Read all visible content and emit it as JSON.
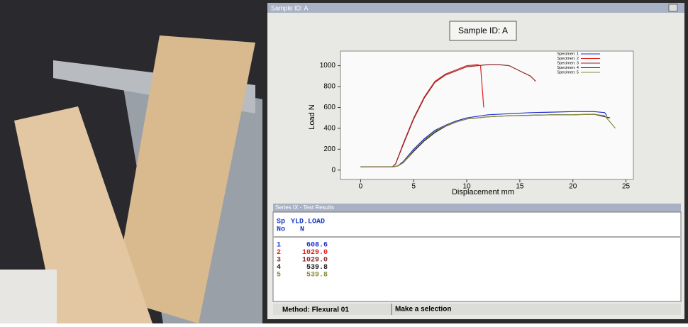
{
  "window": {
    "title": "Sample ID: A"
  },
  "chart_data": {
    "type": "line",
    "title": "Sample ID: A",
    "x_label": "Displacement mm",
    "y_label": "Load N",
    "xlim": [
      -1.9,
      25.7
    ],
    "ylim": [
      -90,
      1140
    ],
    "xticks": [
      0,
      5,
      10,
      15,
      20,
      25
    ],
    "yticks": [
      0,
      200,
      400,
      600,
      800,
      1000
    ],
    "series": [
      {
        "name": "Specimen: 1",
        "color": "#2030d0",
        "x": [
          0,
          1,
          2,
          3,
          3.5,
          4,
          5,
          6,
          7,
          8,
          9,
          10,
          12,
          14,
          16,
          18,
          20,
          22,
          23,
          23.2
        ],
        "values": [
          30,
          30,
          30,
          30,
          40,
          80,
          200,
          300,
          380,
          430,
          470,
          500,
          530,
          540,
          550,
          555,
          560,
          560,
          550,
          520
        ]
      },
      {
        "name": "Specimen: 2",
        "color": "#e02020",
        "x": [
          0,
          1,
          2,
          3,
          3.3,
          4,
          5,
          6,
          7,
          8,
          9,
          10,
          11,
          11.3,
          11.6
        ],
        "values": [
          30,
          30,
          30,
          30,
          60,
          250,
          500,
          700,
          850,
          920,
          960,
          1000,
          1010,
          1000,
          600
        ]
      },
      {
        "name": "Specimen: 3",
        "color": "#8b2a2a",
        "x": [
          0,
          1,
          2,
          3,
          3.3,
          4,
          5,
          6,
          7,
          8,
          9,
          10,
          11,
          12,
          13,
          14,
          15,
          16,
          16.5
        ],
        "values": [
          30,
          30,
          30,
          30,
          60,
          240,
          490,
          690,
          840,
          910,
          950,
          990,
          1000,
          1010,
          1010,
          1000,
          950,
          900,
          850
        ]
      },
      {
        "name": "Specimen: 4",
        "color": "#202020",
        "x": [
          0,
          1,
          2,
          3,
          3.5,
          4,
          5,
          6,
          7,
          8,
          9,
          10,
          12,
          14,
          16,
          18,
          20,
          22,
          23.5
        ],
        "values": [
          30,
          30,
          30,
          30,
          40,
          70,
          180,
          280,
          360,
          420,
          460,
          490,
          510,
          520,
          525,
          530,
          530,
          535,
          500
        ]
      },
      {
        "name": "Specimen: 5",
        "color": "#8a8a3a",
        "x": [
          0,
          1,
          2,
          3,
          3.5,
          4,
          5,
          6,
          7,
          8,
          9,
          10,
          12,
          14,
          16,
          18,
          20,
          22,
          23,
          24
        ],
        "values": [
          30,
          30,
          30,
          30,
          40,
          70,
          190,
          290,
          370,
          425,
          460,
          490,
          510,
          520,
          525,
          530,
          530,
          535,
          520,
          400
        ]
      }
    ]
  },
  "results": {
    "title": "Series IX - Test Results",
    "header": [
      [
        "Sp",
        "No"
      ],
      [
        "YLD.LOAD",
        "N"
      ]
    ],
    "rows": [
      [
        "1",
        "608.6"
      ],
      [
        "2",
        "1029.0"
      ],
      [
        "3",
        "1029.0"
      ],
      [
        "4",
        "539.8"
      ],
      [
        "5",
        "539.8"
      ]
    ]
  },
  "status": {
    "method": "Method: Flexural 01",
    "message": "Make a selection"
  }
}
